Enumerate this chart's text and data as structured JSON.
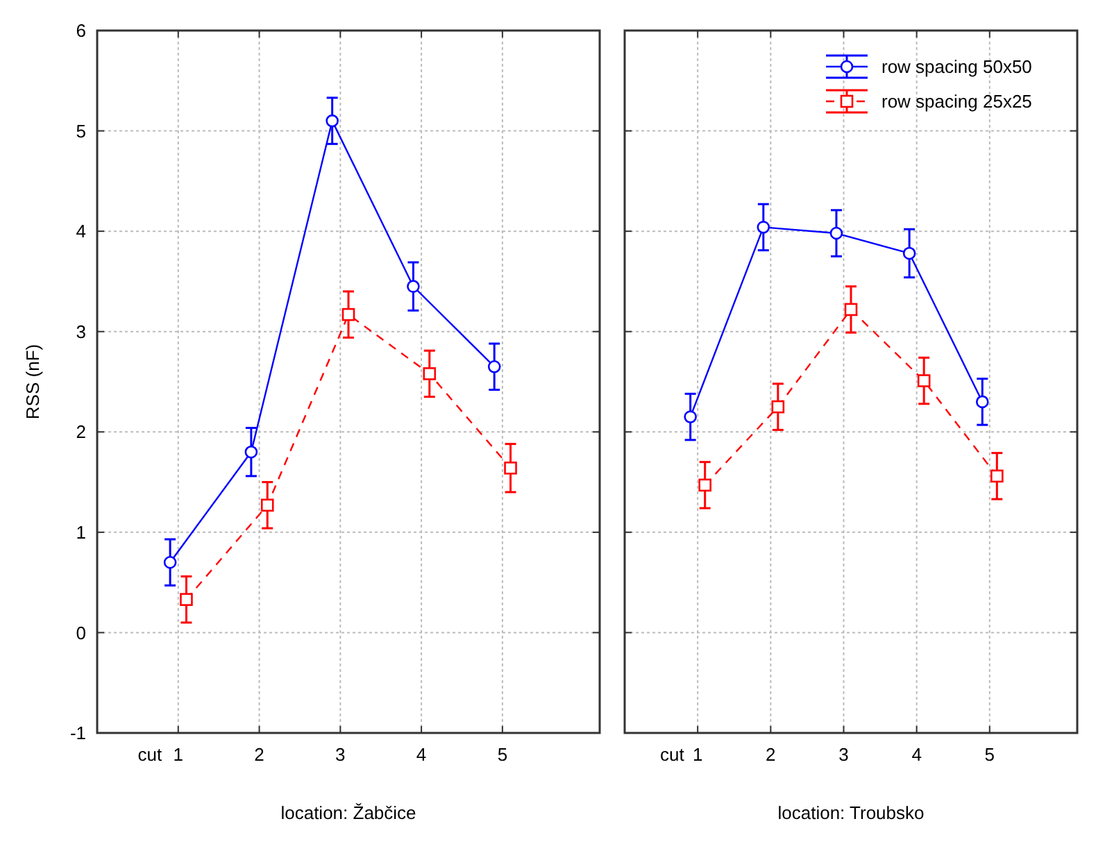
{
  "chart_data": [
    {
      "type": "line",
      "ylabel": "RSS (nF)",
      "xlabel": "location: Žabčice",
      "annotations": [
        "cut"
      ],
      "categories": [
        "1",
        "2",
        "3",
        "4",
        "5"
      ],
      "ylim": [
        -1,
        6
      ],
      "yticks": [
        -1,
        0,
        1,
        2,
        3,
        4,
        5,
        6
      ],
      "grid": true,
      "legend": false,
      "series": [
        {
          "color": "#0000ff",
          "marker": "circle",
          "line_style": "solid",
          "values": [
            0.7,
            1.8,
            5.1,
            3.45,
            2.65
          ],
          "errors": [
            0.23,
            0.24,
            0.23,
            0.24,
            0.23
          ]
        },
        {
          "color": "#ff0000",
          "marker": "square",
          "line_style": "dashed",
          "values": [
            0.33,
            1.27,
            3.17,
            2.58,
            1.64
          ],
          "errors": [
            0.23,
            0.23,
            0.23,
            0.23,
            0.24
          ]
        }
      ]
    },
    {
      "type": "line",
      "xlabel": "location: Troubsko",
      "annotations": [
        "cut"
      ],
      "categories": [
        "1",
        "2",
        "3",
        "4",
        "5"
      ],
      "ylim": [
        -1,
        6
      ],
      "yticks": [
        -1,
        0,
        1,
        2,
        3,
        4,
        5,
        6
      ],
      "tick_labels": "x",
      "grid": true,
      "legend": "top right",
      "series": [
        {
          "name": "row spacing 50x50",
          "color": "#0000ff",
          "marker": "circle",
          "line_style": "solid",
          "values": [
            2.15,
            4.04,
            3.98,
            3.78,
            2.3
          ],
          "errors": [
            0.23,
            0.23,
            0.23,
            0.24,
            0.23
          ]
        },
        {
          "name": "row spacing 25x25",
          "color": "#ff0000",
          "marker": "square",
          "line_style": "dashed",
          "values": [
            1.47,
            2.25,
            3.22,
            2.51,
            1.56
          ],
          "errors": [
            0.23,
            0.23,
            0.23,
            0.23,
            0.23
          ]
        }
      ]
    }
  ]
}
